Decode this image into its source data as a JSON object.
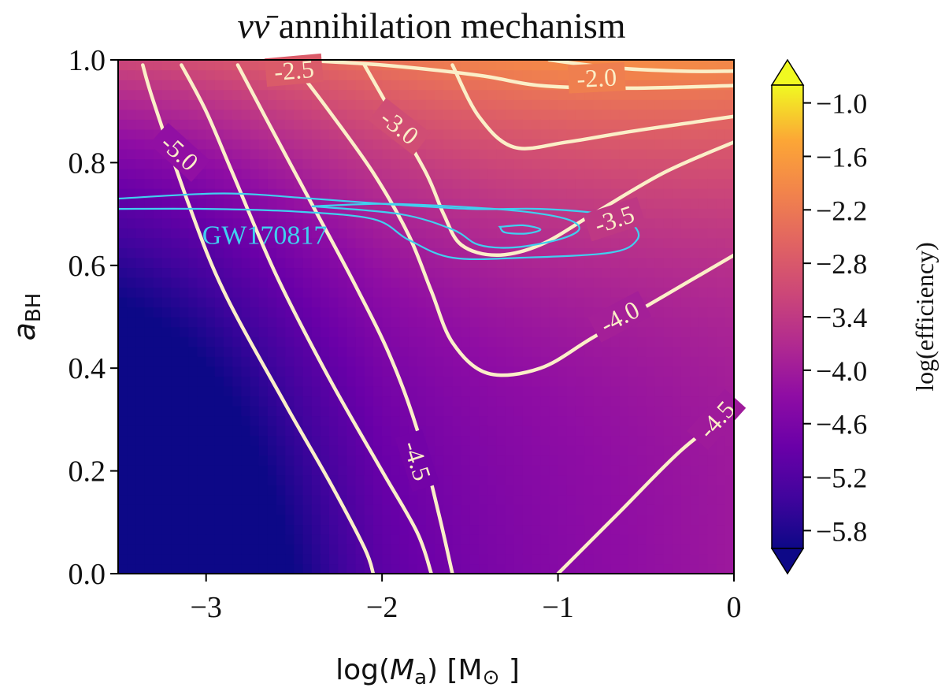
{
  "chart_data": {
    "type": "heatmap",
    "title_math": "νν̄",
    "title_text": " annihilation mechanism",
    "xlabel_prefix": "log(",
    "xlabel_var": "M",
    "xlabel_sub": "a",
    "xlabel_suffix": ") [M",
    "xlabel_sun": "⊙",
    "xlabel_close": " ]",
    "ylabel_var": "a",
    "ylabel_sub": "BH",
    "xlim": [
      -3.5,
      0
    ],
    "ylim": [
      0.0,
      1.0
    ],
    "xticks": [
      -3,
      -2,
      -1,
      0
    ],
    "xtick_labels": [
      "−3",
      "−2",
      "−1",
      "0"
    ],
    "yticks": [
      0.0,
      0.2,
      0.4,
      0.6,
      0.8,
      1.0
    ],
    "ytick_labels": [
      "0.0",
      "0.2",
      "0.4",
      "0.6",
      "0.8",
      "1.0"
    ],
    "colorbar": {
      "label": "log(efficiency)",
      "range": [
        -6.0,
        -0.8
      ],
      "ticks": [
        -5.8,
        -5.2,
        -4.6,
        -4.0,
        -3.4,
        -2.8,
        -2.2,
        -1.6,
        -1.0
      ],
      "tick_labels": [
        "−5.8",
        "−5.2",
        "−4.6",
        "−4.0",
        "−3.4",
        "−2.8",
        "−2.2",
        "−1.6",
        "−1.0"
      ],
      "extend": "both",
      "colormap": "plasma"
    },
    "contour_levels": [
      {
        "level": -5.5,
        "points": [
          [
            -3.36,
            0.99
          ],
          [
            -3.3,
            0.92
          ],
          [
            -3.1,
            0.72
          ],
          [
            -2.9,
            0.55
          ],
          [
            -2.55,
            0.33
          ],
          [
            -2.3,
            0.18
          ],
          [
            -2.1,
            0.05
          ],
          [
            -2.05,
            0.0
          ]
        ]
      },
      {
        "level": -5.0,
        "points": [
          [
            -3.14,
            0.99
          ],
          [
            -3.0,
            0.9
          ],
          [
            -2.85,
            0.78
          ],
          [
            -2.6,
            0.58
          ],
          [
            -2.3,
            0.38
          ],
          [
            -2.0,
            0.2
          ],
          [
            -1.8,
            0.08
          ],
          [
            -1.72,
            0.0
          ]
        ]
      },
      {
        "level": -4.5,
        "points": [
          [
            -2.82,
            0.99
          ],
          [
            -2.65,
            0.88
          ],
          [
            -2.4,
            0.72
          ],
          [
            -2.15,
            0.56
          ],
          [
            -1.95,
            0.42
          ],
          [
            -1.8,
            0.28
          ],
          [
            -1.68,
            0.12
          ],
          [
            -1.6,
            0.0
          ]
        ]
      },
      {
        "level": -4.5,
        "points": [
          [
            -1.0,
            0.0
          ],
          [
            -0.65,
            0.12
          ],
          [
            -0.3,
            0.24
          ],
          [
            0.0,
            0.32
          ]
        ]
      },
      {
        "level": -4.0,
        "points": [
          [
            -2.5,
            0.99
          ],
          [
            -2.3,
            0.9
          ],
          [
            -2.05,
            0.78
          ],
          [
            -1.85,
            0.66
          ],
          [
            -1.72,
            0.55
          ],
          [
            -1.6,
            0.45
          ],
          [
            -1.4,
            0.39
          ],
          [
            -1.1,
            0.4
          ],
          [
            -0.8,
            0.46
          ],
          [
            -0.4,
            0.54
          ],
          [
            0.0,
            0.62
          ]
        ]
      },
      {
        "level": -3.5,
        "points": [
          [
            -2.1,
            0.99
          ],
          [
            -1.95,
            0.9
          ],
          [
            -1.75,
            0.78
          ],
          [
            -1.65,
            0.7
          ],
          [
            -1.55,
            0.64
          ],
          [
            -1.35,
            0.62
          ],
          [
            -1.1,
            0.64
          ],
          [
            -0.8,
            0.7
          ],
          [
            -0.4,
            0.78
          ],
          [
            0.0,
            0.84
          ]
        ]
      },
      {
        "level": -3.0,
        "points": [
          [
            -1.6,
            0.99
          ],
          [
            -1.45,
            0.89
          ],
          [
            -1.25,
            0.83
          ],
          [
            -0.95,
            0.84
          ],
          [
            -0.6,
            0.86
          ],
          [
            -0.2,
            0.88
          ],
          [
            0.0,
            0.89
          ]
        ]
      },
      {
        "level": -2.5,
        "points": [
          [
            -2.5,
            1.0
          ],
          [
            -2.0,
            0.99
          ],
          [
            -1.45,
            0.97
          ],
          [
            -1.1,
            0.95
          ],
          [
            -0.6,
            0.945
          ],
          [
            0.0,
            0.95
          ]
        ]
      },
      {
        "level": -2.0,
        "points": [
          [
            -1.05,
            1.0
          ],
          [
            -0.7,
            0.985
          ],
          [
            -0.3,
            0.978
          ],
          [
            0.0,
            0.978
          ]
        ]
      }
    ],
    "contour_labels": [
      {
        "text": "-5.0",
        "x": -3.15,
        "y": 0.82,
        "angle": 42
      },
      {
        "text": "-4.5",
        "x": -1.8,
        "y": 0.22,
        "angle": 72
      },
      {
        "text": "-4.5",
        "x": -0.1,
        "y": 0.3,
        "angle": -48
      },
      {
        "text": "-4.0",
        "x": -0.65,
        "y": 0.5,
        "angle": -28
      },
      {
        "text": "-3.5",
        "x": -0.68,
        "y": 0.69,
        "angle": -18
      },
      {
        "text": "-3.0",
        "x": -1.9,
        "y": 0.87,
        "angle": 38
      },
      {
        "text": "-2.5",
        "x": -2.5,
        "y": 0.98,
        "angle": -5
      },
      {
        "text": "-2.0",
        "x": -0.78,
        "y": 0.965,
        "angle": -3
      }
    ],
    "overlay": {
      "label": "GW170817",
      "label_x": -3.0,
      "label_y": 0.66,
      "color": "#40d0f0",
      "contours": [
        [
          [
            -3.5,
            0.73
          ],
          [
            -2.9,
            0.74
          ],
          [
            -2.4,
            0.73
          ],
          [
            -2.0,
            0.72
          ],
          [
            -1.5,
            0.71
          ],
          [
            -1.1,
            0.71
          ],
          [
            -0.75,
            0.7
          ],
          [
            -0.58,
            0.68
          ],
          [
            -0.55,
            0.65
          ],
          [
            -0.7,
            0.625
          ],
          [
            -1.2,
            0.615
          ],
          [
            -1.6,
            0.615
          ],
          [
            -1.85,
            0.65
          ],
          [
            -2.05,
            0.69
          ],
          [
            -2.5,
            0.705
          ],
          [
            -3.0,
            0.71
          ],
          [
            -3.5,
            0.71
          ]
        ],
        [
          [
            -2.4,
            0.715
          ],
          [
            -2.0,
            0.72
          ],
          [
            -1.6,
            0.715
          ],
          [
            -1.2,
            0.705
          ],
          [
            -0.95,
            0.69
          ],
          [
            -0.88,
            0.67
          ],
          [
            -1.0,
            0.65
          ],
          [
            -1.25,
            0.635
          ],
          [
            -1.45,
            0.64
          ],
          [
            -1.6,
            0.67
          ],
          [
            -1.9,
            0.7
          ],
          [
            -2.4,
            0.715
          ]
        ],
        [
          [
            -1.33,
            0.675
          ],
          [
            -1.2,
            0.678
          ],
          [
            -1.1,
            0.67
          ],
          [
            -1.18,
            0.662
          ],
          [
            -1.3,
            0.664
          ],
          [
            -1.33,
            0.675
          ]
        ]
      ]
    }
  }
}
